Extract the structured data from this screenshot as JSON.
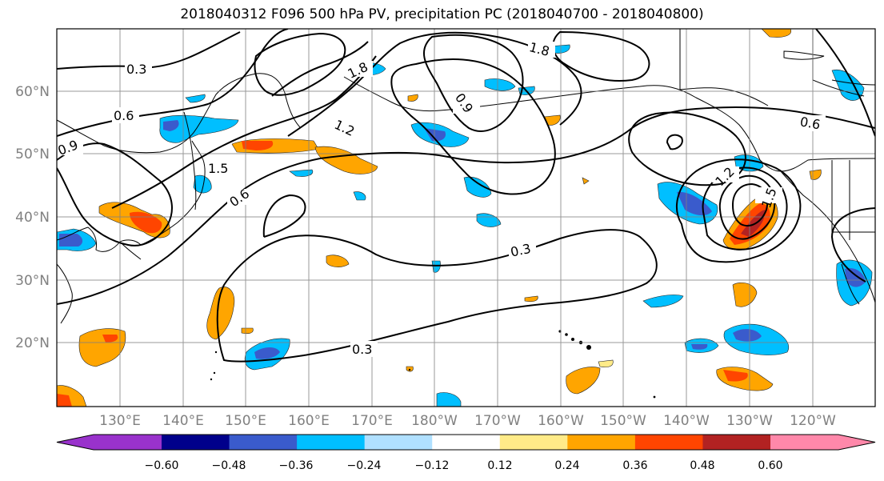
{
  "title": "2018040312 F096 500 hPa PV, precipitation PC (2018040700 - 2018040800)",
  "lat_labels": [
    "60°N",
    "50°N",
    "40°N",
    "30°N",
    "20°N"
  ],
  "lon_labels": [
    "130°E",
    "140°E",
    "150°E",
    "160°E",
    "170°E",
    "180°W",
    "170°W",
    "160°W",
    "150°W",
    "140°W",
    "130°W",
    "120°W"
  ],
  "contour_labels": [
    "0.3",
    "0.6",
    "0.9",
    "1.2",
    "1.5",
    "1.8",
    "0.3",
    "0.3",
    "0.6",
    "0.6",
    "0.9",
    "1.2",
    "1.5",
    "1.8"
  ],
  "colorbar": {
    "colors": [
      "#9932CC",
      "#00008B",
      "#3A5BCC",
      "#00BFFF",
      "#B0E0FF",
      "#FFFFFF",
      "#FFEB88",
      "#FFA500",
      "#FF4500",
      "#B22222",
      "#FF88AA"
    ],
    "tick_labels": [
      "−0.60",
      "−0.48",
      "−0.36",
      "−0.24",
      "−0.12",
      "0.12",
      "0.24",
      "0.36",
      "0.48",
      "0.60"
    ]
  }
}
